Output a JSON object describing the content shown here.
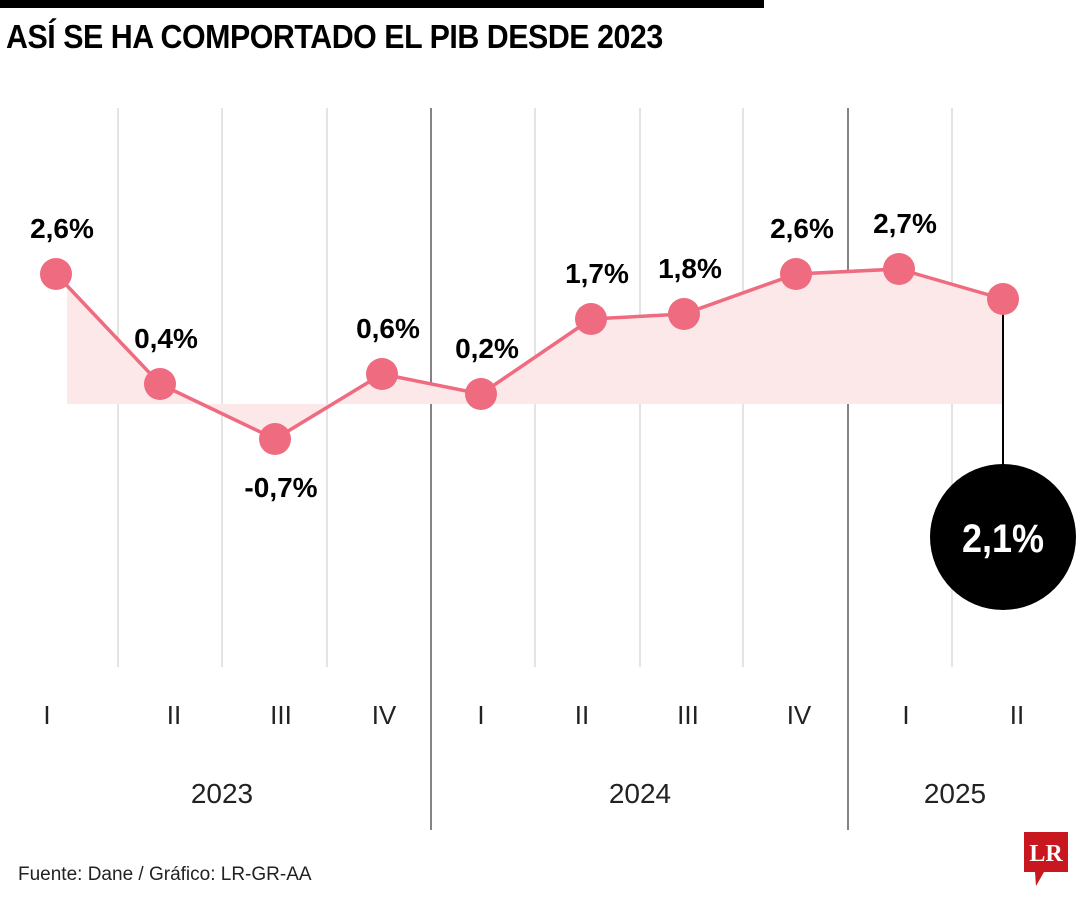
{
  "title": "ASÍ SE HA COMPORTADO EL PIB DESDE 2023",
  "source": "Fuente: Dane / Gráfico: LR-GR-AA",
  "logo_text": "LR",
  "colors": {
    "line": "#ee6b80",
    "area": "#fde8e9",
    "callout": "#000000",
    "logo": "#c8171e"
  },
  "chart_data": {
    "type": "line",
    "title": "ASÍ SE HA COMPORTADO EL PIB DESDE 2023",
    "categories": [
      "I",
      "II",
      "III",
      "IV",
      "I",
      "II",
      "III",
      "IV",
      "I",
      "II"
    ],
    "years": [
      {
        "label": "2023",
        "quarters": 4
      },
      {
        "label": "2024",
        "quarters": 4
      },
      {
        "label": "2025",
        "quarters": 2
      }
    ],
    "values": [
      2.6,
      0.4,
      -0.7,
      0.6,
      0.2,
      1.7,
      1.8,
      2.6,
      2.7,
      2.1
    ],
    "labels": [
      "2,6%",
      "0,4%",
      "-0,7%",
      "0,6%",
      "0,2%",
      "1,7%",
      "1,8%",
      "2,6%",
      "2,7%",
      ""
    ],
    "highlight": {
      "index": 9,
      "label": "2,1%"
    },
    "unit": "%",
    "grid": "vertical",
    "legend": "none"
  }
}
